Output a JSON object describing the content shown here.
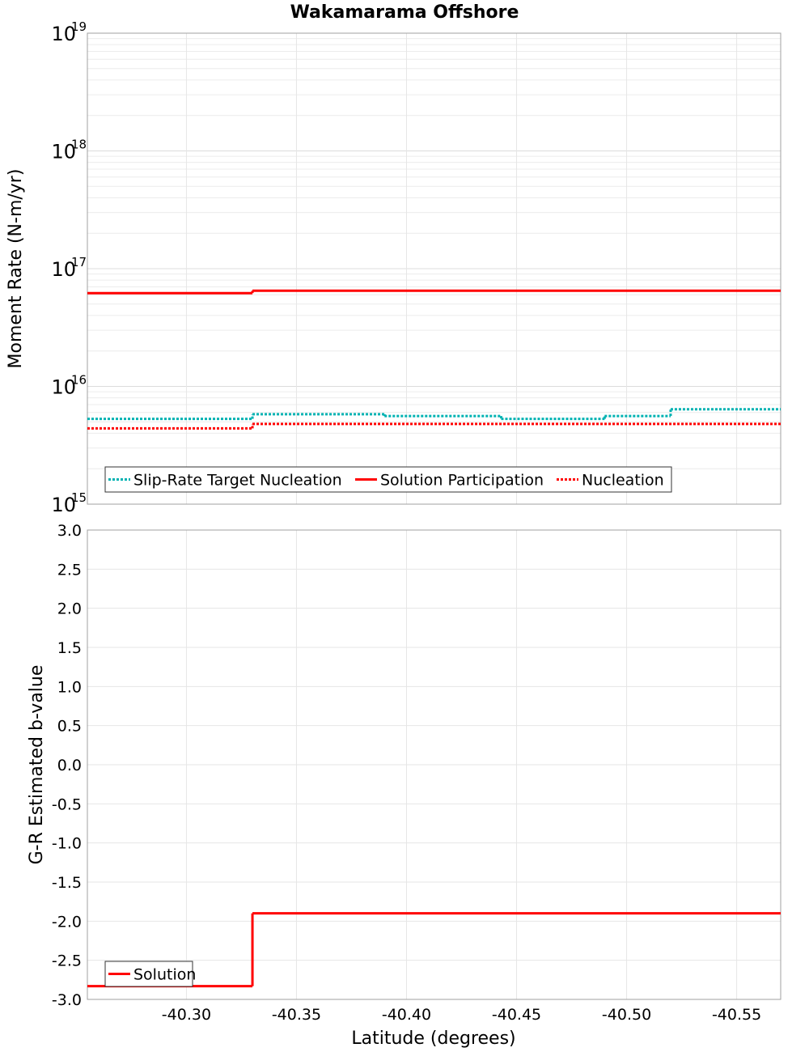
{
  "chart_data": [
    {
      "type": "line",
      "title": "Wakamarama Offshore",
      "xlabel": "Latitude (degrees)",
      "ylabel": "Moment Rate (N-m/yr)",
      "yscale": "log",
      "ylim": [
        1000000000000000.0,
        1e+19
      ],
      "y_ticks": [
        {
          "base": "10",
          "exp": "15",
          "value": 1000000000000000.0
        },
        {
          "base": "10",
          "exp": "16",
          "value": 1e+16
        },
        {
          "base": "10",
          "exp": "17",
          "value": 1e+17
        },
        {
          "base": "10",
          "exp": "18",
          "value": 1e+18
        },
        {
          "base": "10",
          "exp": "19",
          "value": 1e+19
        }
      ],
      "xlim": [
        -40.255,
        -40.57
      ],
      "x_ticks": [
        "-40.30",
        "-40.35",
        "-40.40",
        "-40.45",
        "-40.50",
        "-40.55"
      ],
      "x_tick_values": [
        -40.3,
        -40.35,
        -40.4,
        -40.45,
        -40.5,
        -40.55
      ],
      "grid": true,
      "legend_position": "bottom-left",
      "series": [
        {
          "name": "Slip-Rate Target Nucleation",
          "color": "#00b2b2",
          "style": "dotted",
          "steps": [
            {
              "x0": -40.255,
              "x1": -40.33,
              "y": 5300000000000000.0
            },
            {
              "x0": -40.33,
              "x1": -40.39,
              "y": 5800000000000000.0
            },
            {
              "x0": -40.39,
              "x1": -40.443,
              "y": 5600000000000000.0
            },
            {
              "x0": -40.443,
              "x1": -40.49,
              "y": 5300000000000000.0
            },
            {
              "x0": -40.49,
              "x1": -40.52,
              "y": 5600000000000000.0
            },
            {
              "x0": -40.52,
              "x1": -40.57,
              "y": 6400000000000000.0
            }
          ]
        },
        {
          "name": "Solution Participation",
          "color": "#ff0000",
          "style": "solid",
          "steps": [
            {
              "x0": -40.255,
              "x1": -40.33,
              "y": 6.2e+16
            },
            {
              "x0": -40.33,
              "x1": -40.57,
              "y": 6.5e+16
            }
          ]
        },
        {
          "name": "Nucleation",
          "color": "#ff0000",
          "style": "dotted",
          "steps": [
            {
              "x0": -40.255,
              "x1": -40.33,
              "y": 4400000000000000.0
            },
            {
              "x0": -40.33,
              "x1": -40.57,
              "y": 4800000000000000.0
            }
          ]
        }
      ]
    },
    {
      "type": "line",
      "title": "",
      "xlabel": "Latitude (degrees)",
      "ylabel": "G-R Estimated b-value",
      "ylim": [
        -3.0,
        3.0
      ],
      "y_ticks": [
        "-3.0",
        "-2.5",
        "-2.0",
        "-1.5",
        "-1.0",
        "-0.5",
        "0.0",
        "0.5",
        "1.0",
        "1.5",
        "2.0",
        "2.5",
        "3.0"
      ],
      "y_tick_values": [
        -3.0,
        -2.5,
        -2.0,
        -1.5,
        -1.0,
        -0.5,
        0.0,
        0.5,
        1.0,
        1.5,
        2.0,
        2.5,
        3.0
      ],
      "xlim": [
        -40.255,
        -40.57
      ],
      "x_ticks": [
        "-40.30",
        "-40.35",
        "-40.40",
        "-40.45",
        "-40.50",
        "-40.55"
      ],
      "x_tick_values": [
        -40.3,
        -40.35,
        -40.4,
        -40.45,
        -40.5,
        -40.55
      ],
      "grid": true,
      "legend_position": "bottom-left",
      "series": [
        {
          "name": "Solution",
          "color": "#ff0000",
          "style": "solid",
          "steps": [
            {
              "x0": -40.255,
              "x1": -40.33,
              "y": -2.83
            },
            {
              "x0": -40.33,
              "x1": -40.57,
              "y": -1.9
            }
          ]
        }
      ]
    }
  ]
}
